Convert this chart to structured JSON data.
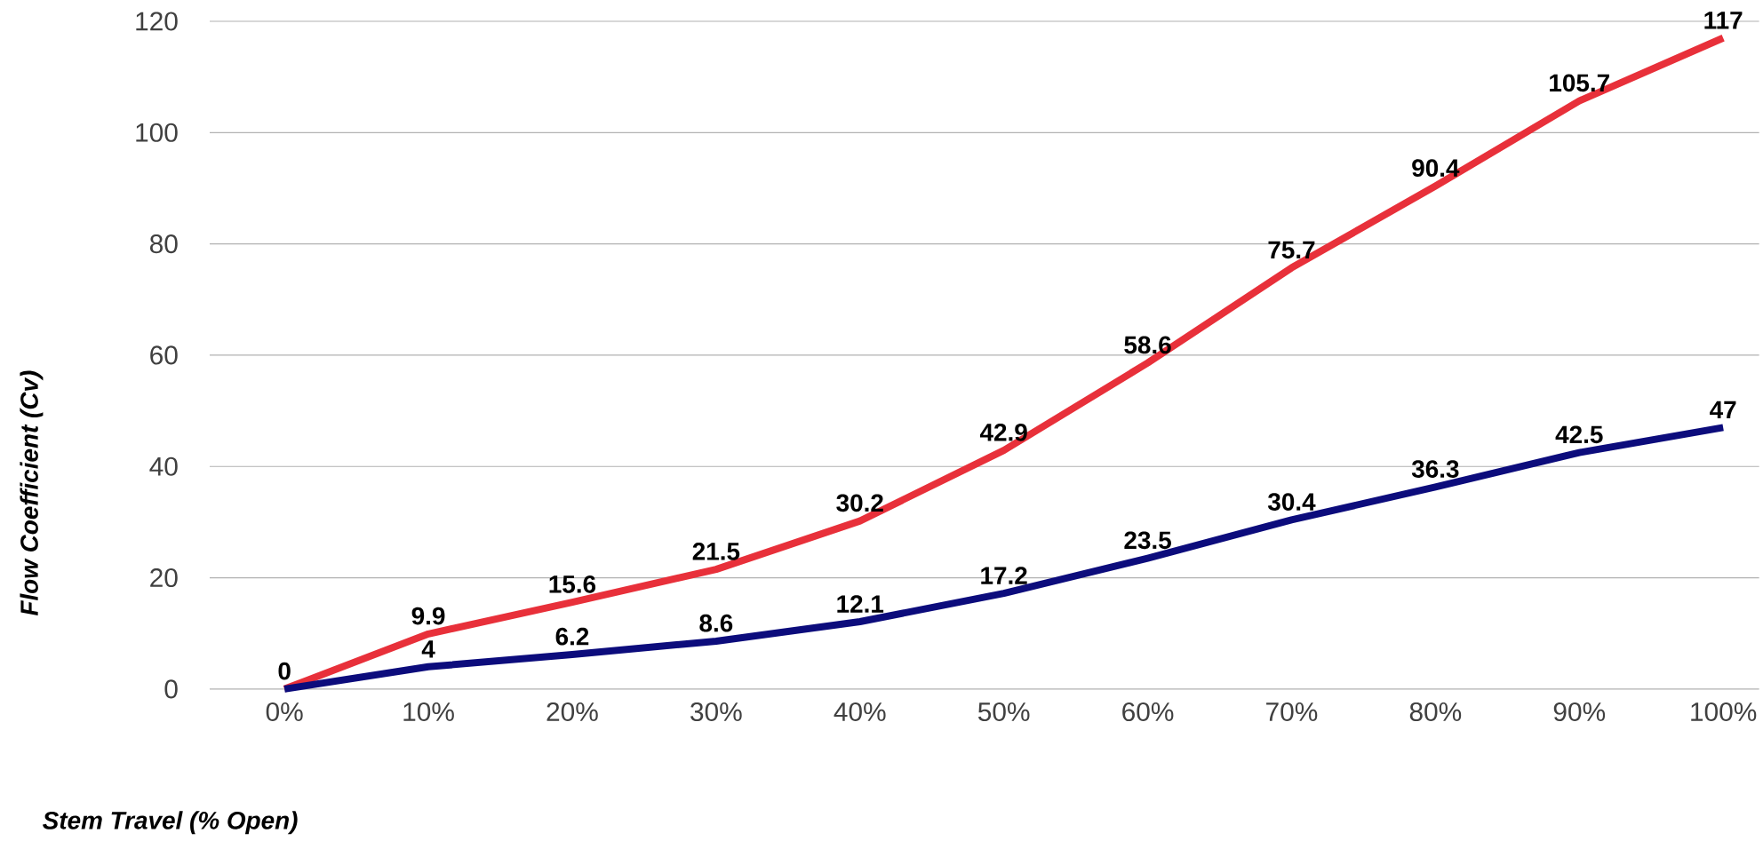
{
  "chart_data": {
    "type": "line",
    "categories": [
      "0%",
      "10%",
      "20%",
      "30%",
      "40%",
      "50%",
      "60%",
      "70%",
      "80%",
      "90%",
      "100%"
    ],
    "series": [
      {
        "color": "#e8303a",
        "values": [
          0,
          9.9,
          15.6,
          21.5,
          30.2,
          42.9,
          58.6,
          75.7,
          90.4,
          105.7,
          117
        ],
        "value_labels": [
          "0",
          "9.9",
          "15.6",
          "21.5",
          "30.2",
          "42.9",
          "58.6",
          "75.7",
          "90.4",
          "105.7",
          "117"
        ]
      },
      {
        "color": "#0c0c7c",
        "values": [
          0,
          4,
          6.2,
          8.6,
          12.1,
          17.2,
          23.5,
          30.4,
          36.3,
          42.5,
          47
        ],
        "value_labels": [
          null,
          "4",
          "6.2",
          "8.6",
          "12.1",
          "17.2",
          "23.5",
          "30.4",
          "36.3",
          "42.5",
          "47"
        ]
      }
    ],
    "xlabel": "Stem Travel (% Open)",
    "ylabel": "Flow Coefficient (Cv)",
    "ylim": [
      0,
      120
    ],
    "yticks": [
      0,
      20,
      40,
      60,
      80,
      100,
      120
    ],
    "grid": "y",
    "line_style": "solid"
  }
}
